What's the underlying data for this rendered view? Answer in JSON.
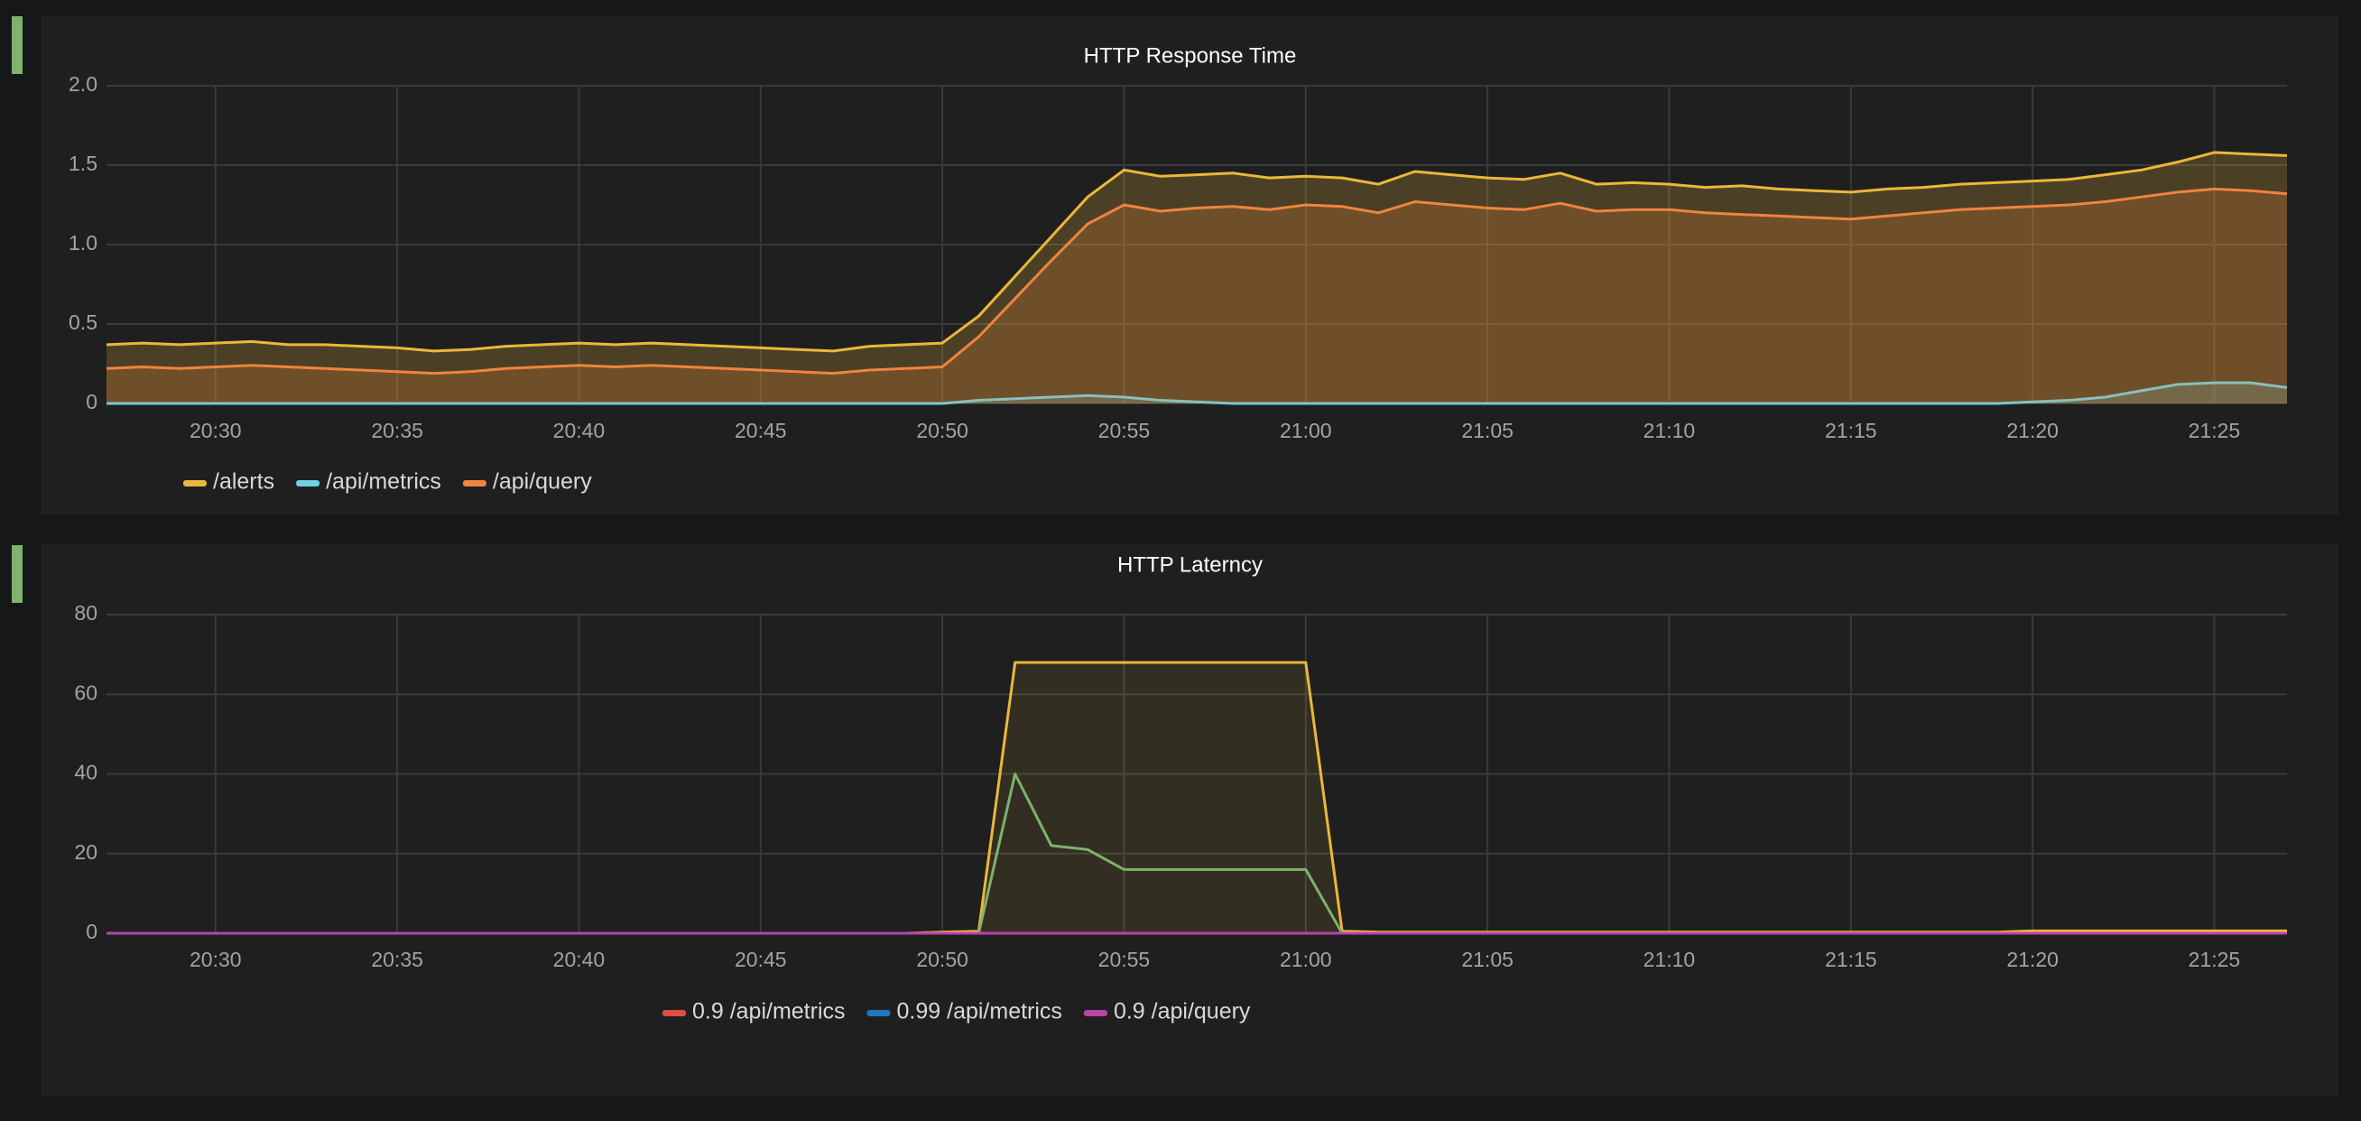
{
  "chart_data": [
    {
      "type": "line",
      "title": "HTTP Response Time",
      "x": [
        "20:27",
        "20:28",
        "20:29",
        "20:30",
        "20:31",
        "20:32",
        "20:33",
        "20:34",
        "20:35",
        "20:36",
        "20:37",
        "20:38",
        "20:39",
        "20:40",
        "20:41",
        "20:42",
        "20:43",
        "20:44",
        "20:45",
        "20:46",
        "20:47",
        "20:48",
        "20:49",
        "20:50",
        "20:51",
        "20:52",
        "20:53",
        "20:54",
        "20:55",
        "20:56",
        "20:57",
        "20:58",
        "20:59",
        "21:00",
        "21:01",
        "21:02",
        "21:03",
        "21:04",
        "21:05",
        "21:06",
        "21:07",
        "21:08",
        "21:09",
        "21:10",
        "21:11",
        "21:12",
        "21:13",
        "21:14",
        "21:15",
        "21:16",
        "21:17",
        "21:18",
        "21:19",
        "21:20",
        "21:21",
        "21:22",
        "21:23",
        "21:24",
        "21:25",
        "21:26",
        "21:27"
      ],
      "xlim": [
        "20:27",
        "21:27"
      ],
      "xticks": [
        "20:30",
        "20:35",
        "20:40",
        "20:45",
        "20:50",
        "20:55",
        "21:00",
        "21:05",
        "21:10",
        "21:15",
        "21:20",
        "21:25"
      ],
      "ylim": [
        0,
        2
      ],
      "yticks": [
        0,
        0.5,
        {
          "value": 1,
          "label": "1.0"
        },
        1.5,
        {
          "value": 2,
          "label": "2.0"
        }
      ],
      "grid": true,
      "legend": "bottom left",
      "series": [
        {
          "name": "/alerts",
          "color": "#eab839",
          "fill": true,
          "values": [
            0.37,
            0.38,
            0.37,
            0.38,
            0.39,
            0.37,
            0.37,
            0.36,
            0.35,
            0.33,
            0.34,
            0.36,
            0.37,
            0.38,
            0.37,
            0.38,
            0.37,
            0.36,
            0.35,
            0.34,
            0.33,
            0.36,
            0.37,
            0.38,
            0.55,
            0.8,
            1.05,
            1.3,
            1.47,
            1.43,
            1.44,
            1.45,
            1.42,
            1.43,
            1.42,
            1.38,
            1.46,
            1.44,
            1.42,
            1.41,
            1.45,
            1.38,
            1.39,
            1.38,
            1.36,
            1.37,
            1.35,
            1.34,
            1.33,
            1.35,
            1.36,
            1.38,
            1.39,
            1.4,
            1.41,
            1.44,
            1.47,
            1.52,
            1.58,
            1.57,
            1.56
          ]
        },
        {
          "name": "/api/metrics",
          "color": "#6ed0e0",
          "fill": true,
          "values": [
            0,
            0,
            0,
            0,
            0,
            0,
            0,
            0,
            0,
            0,
            0,
            0,
            0,
            0,
            0,
            0,
            0,
            0,
            0,
            0,
            0,
            0,
            0,
            0,
            0.02,
            0.03,
            0.04,
            0.05,
            0.04,
            0.02,
            0.01,
            0,
            0,
            0,
            0,
            0,
            0,
            0,
            0,
            0,
            0,
            0,
            0,
            0,
            0,
            0,
            0,
            0,
            0,
            0,
            0,
            0,
            0,
            0.01,
            0.02,
            0.04,
            0.08,
            0.12,
            0.13,
            0.13,
            0.1
          ]
        },
        {
          "name": "/api/query",
          "color": "#ef843c",
          "fill": true,
          "values": [
            0.22,
            0.23,
            0.22,
            0.23,
            0.24,
            0.23,
            0.22,
            0.21,
            0.2,
            0.19,
            0.2,
            0.22,
            0.23,
            0.24,
            0.23,
            0.24,
            0.23,
            0.22,
            0.21,
            0.2,
            0.19,
            0.21,
            0.22,
            0.23,
            0.42,
            0.66,
            0.9,
            1.13,
            1.25,
            1.21,
            1.23,
            1.24,
            1.22,
            1.25,
            1.24,
            1.2,
            1.27,
            1.25,
            1.23,
            1.22,
            1.26,
            1.21,
            1.22,
            1.22,
            1.2,
            1.19,
            1.18,
            1.17,
            1.16,
            1.18,
            1.2,
            1.22,
            1.23,
            1.24,
            1.25,
            1.27,
            1.3,
            1.33,
            1.35,
            1.34,
            1.32
          ]
        }
      ]
    },
    {
      "type": "line",
      "title": "HTTP Laterncy",
      "x": [
        "20:27",
        "20:28",
        "20:29",
        "20:30",
        "20:31",
        "20:32",
        "20:33",
        "20:34",
        "20:35",
        "20:36",
        "20:37",
        "20:38",
        "20:39",
        "20:40",
        "20:41",
        "20:42",
        "20:43",
        "20:44",
        "20:45",
        "20:46",
        "20:47",
        "20:48",
        "20:49",
        "20:50",
        "20:51",
        "20:52",
        "20:53",
        "20:54",
        "20:55",
        "20:56",
        "20:57",
        "20:58",
        "20:59",
        "21:00",
        "21:01",
        "21:02",
        "21:03",
        "21:04",
        "21:05",
        "21:06",
        "21:07",
        "21:08",
        "21:09",
        "21:10",
        "21:11",
        "21:12",
        "21:13",
        "21:14",
        "21:15",
        "21:16",
        "21:17",
        "21:18",
        "21:19",
        "21:20",
        "21:21",
        "21:22",
        "21:23",
        "21:24",
        "21:25",
        "21:26",
        "21:27"
      ],
      "xlim": [
        "20:27",
        "21:27"
      ],
      "xticks": [
        "20:30",
        "20:35",
        "20:40",
        "20:45",
        "20:50",
        "20:55",
        "21:00",
        "21:05",
        "21:10",
        "21:15",
        "21:20",
        "21:25"
      ],
      "ylim": [
        0,
        80
      ],
      "yticks": [
        0,
        20,
        40,
        60,
        80
      ],
      "grid": true,
      "legend": "bottom center",
      "series": [
        {
          "color": "#eab839",
          "fill": true,
          "values": [
            0,
            0,
            0,
            0,
            0,
            0,
            0,
            0,
            0,
            0,
            0,
            0,
            0,
            0,
            0,
            0,
            0,
            0,
            0,
            0,
            0,
            0,
            0,
            0.3,
            0.5,
            68,
            68,
            68,
            68,
            68,
            68,
            68,
            68,
            68,
            0.5,
            0.3,
            0.3,
            0.3,
            0.3,
            0.3,
            0.3,
            0.3,
            0.3,
            0.3,
            0.3,
            0.3,
            0.3,
            0.3,
            0.3,
            0.3,
            0.3,
            0.3,
            0.3,
            0.6,
            0.6,
            0.6,
            0.6,
            0.6,
            0.6,
            0.6,
            0.6
          ]
        },
        {
          "color": "#7eb26d",
          "fill": false,
          "values": [
            0,
            0,
            0,
            0,
            0,
            0,
            0,
            0,
            0,
            0,
            0,
            0,
            0,
            0,
            0,
            0,
            0,
            0,
            0,
            0,
            0,
            0,
            0,
            0,
            0,
            40,
            22,
            21,
            16,
            16,
            16,
            16,
            16,
            16,
            0,
            0,
            0,
            0,
            0,
            0,
            0,
            0,
            0,
            0,
            0,
            0,
            0,
            0,
            0,
            0,
            0,
            0,
            0,
            0,
            0,
            0,
            0,
            0,
            0,
            0,
            0
          ]
        },
        {
          "name": "0.9 /api/metrics",
          "color": "#e24d42",
          "fill": false,
          "values": [
            0,
            0,
            0,
            0,
            0,
            0,
            0,
            0,
            0,
            0,
            0,
            0,
            0,
            0,
            0,
            0,
            0,
            0,
            0,
            0,
            0,
            0,
            0,
            0,
            0,
            0,
            0,
            0,
            0,
            0,
            0,
            0,
            0,
            0,
            0,
            0,
            0,
            0,
            0,
            0,
            0,
            0,
            0,
            0,
            0,
            0,
            0,
            0,
            0,
            0,
            0,
            0,
            0,
            0,
            0,
            0,
            0,
            0,
            0,
            0,
            0
          ]
        },
        {
          "name": "0.99 /api/metrics",
          "color": "#1f78c1",
          "fill": false,
          "values": [
            0,
            0,
            0,
            0,
            0,
            0,
            0,
            0,
            0,
            0,
            0,
            0,
            0,
            0,
            0,
            0,
            0,
            0,
            0,
            0,
            0,
            0,
            0,
            0,
            0,
            0,
            0,
            0,
            0,
            0,
            0,
            0,
            0,
            0,
            0,
            0,
            0,
            0,
            0,
            0,
            0,
            0,
            0,
            0,
            0,
            0,
            0,
            0,
            0,
            0,
            0,
            0,
            0,
            0,
            0,
            0,
            0,
            0,
            0,
            0,
            0
          ]
        },
        {
          "name": "0.9 /api/query",
          "color": "#ba43a9",
          "fill": false,
          "values": [
            0,
            0,
            0,
            0,
            0,
            0,
            0,
            0,
            0,
            0,
            0,
            0,
            0,
            0,
            0,
            0,
            0,
            0,
            0,
            0,
            0,
            0,
            0,
            0,
            0,
            0,
            0,
            0,
            0,
            0,
            0,
            0,
            0,
            0,
            0,
            0,
            0,
            0,
            0,
            0,
            0,
            0,
            0,
            0,
            0,
            0,
            0,
            0,
            0,
            0,
            0,
            0,
            0,
            0,
            0,
            0,
            0,
            0,
            0,
            0,
            0
          ]
        }
      ]
    }
  ]
}
